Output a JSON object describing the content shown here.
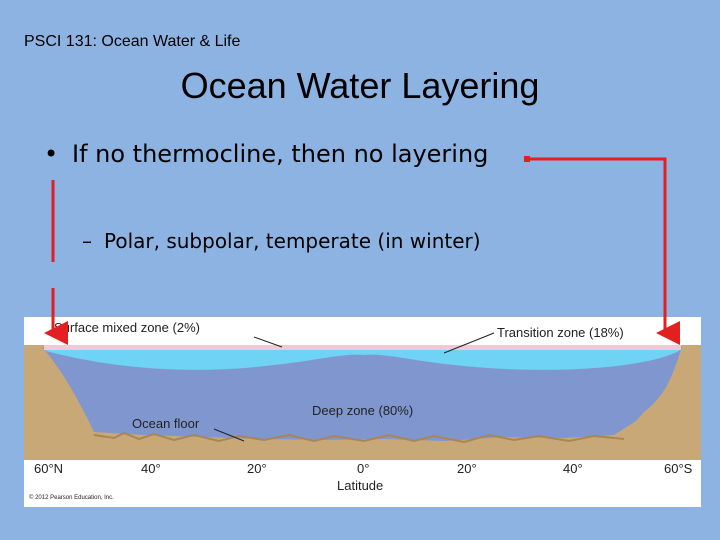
{
  "header": {
    "course_label": "PSCI 131: Ocean Water & Life",
    "title": "Ocean Water Layering"
  },
  "bullets": {
    "main_dot": "•",
    "main": "If no thermocline, then no layering",
    "sub_dash": "–",
    "sub": "Polar, subpolar, temperate (in winter)"
  },
  "figure": {
    "labels": {
      "surface": "Surface mixed zone (2%)",
      "transition": "Transition zone (18%)",
      "deep": "Deep zone (80%)",
      "floor": "Ocean floor"
    },
    "axis_ticks": [
      "60°N",
      "40°",
      "20°",
      "0°",
      "20°",
      "40°",
      "60°S"
    ],
    "axis_label": "Latitude",
    "copyright": "© 2012 Pearson Education, Inc.",
    "colors": {
      "surface_zone": "#f2c6dc",
      "transition_zone": "#6fd3f5",
      "deep_zone": "#8096cf",
      "land": "#c9a877"
    }
  },
  "annotation": {
    "arrow_color": "#e41f1f"
  }
}
